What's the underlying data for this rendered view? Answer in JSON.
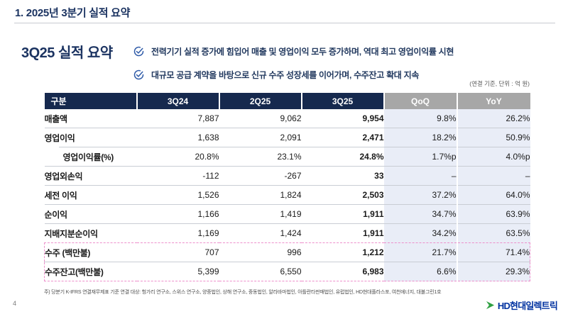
{
  "slide": {
    "title": "1. 2025년 3분기 실적 요약",
    "page_number": "4"
  },
  "summary": {
    "heading": "3Q25 실적 요약",
    "bullets": [
      {
        "icon": "circle-check-icon",
        "text": "전력기기 실적 증가에 힘입어 매출 및 영업이익 모두 증가하며, 역대 최고 영업이익률 시현"
      },
      {
        "icon": "circle-check-icon",
        "text": "대규모 공급 계약을 바탕으로 신규 수주 성장세를 이어가며, 수주잔고 확대 지속"
      }
    ]
  },
  "table": {
    "unit_note": "(연결 기준, 단위 : 억 원)",
    "columns": [
      "구분",
      "3Q24",
      "2Q25",
      "3Q25",
      "QoQ",
      "YoY"
    ],
    "rows": [
      {
        "label": "매출액",
        "q3_24": "7,887",
        "q2_25": "9,062",
        "q3_25": "9,954",
        "qoq": "9.8%",
        "yoy": "26.2%"
      },
      {
        "label": "영업이익",
        "q3_24": "1,638",
        "q2_25": "2,091",
        "q3_25": "2,471",
        "qoq": "18.2%",
        "yoy": "50.9%"
      },
      {
        "label": "영업이익률(%)",
        "q3_24": "20.8%",
        "q2_25": "23.1%",
        "q3_25": "24.8%",
        "qoq": "1.7%p",
        "yoy": "4.0%p",
        "indent": true
      },
      {
        "label": "영업외손익",
        "q3_24": "-112",
        "q2_25": "-267",
        "q3_25": "33",
        "qoq": "–",
        "yoy": "–"
      },
      {
        "label": "세전 이익",
        "q3_24": "1,526",
        "q2_25": "1,824",
        "q3_25": "2,503",
        "qoq": "37.2%",
        "yoy": "64.0%"
      },
      {
        "label": "순이익",
        "q3_24": "1,166",
        "q2_25": "1,419",
        "q3_25": "1,911",
        "qoq": "34.7%",
        "yoy": "63.9%"
      },
      {
        "label": "지배지분순이익",
        "q3_24": "1,169",
        "q2_25": "1,424",
        "q3_25": "1,911",
        "qoq": "34.2%",
        "yoy": "63.5%"
      },
      {
        "label": "수주 (백만불)",
        "q3_24": "707",
        "q2_25": "996",
        "q3_25": "1,212",
        "qoq": "21.7%",
        "yoy": "71.4%",
        "boxed": true
      },
      {
        "label": "수주잔고(백만불)",
        "q3_24": "5,399",
        "q2_25": "6,550",
        "q3_25": "6,983",
        "qoq": "6.6%",
        "yoy": "29.3%",
        "boxed": true
      }
    ]
  },
  "footnote": "주) 당분기 K-IFRS 연결재무제표 기준 연결 대상: 헝가리 연구소, 스위스 연구소, 양중법인, 상해 연구소, 중동법인, 알라바마법인, 아틀란타판매법인, 유럽법인, HD현대플라스포, 여천에너지, 대불그린1호",
  "logo": {
    "company": "HD현대일렉트릭"
  },
  "colors": {
    "navy": "#16294E",
    "title_navy": "#1B3361",
    "header_gray": "#A7A7A7",
    "delta_bg": "#E9EDF7",
    "dashed_pink": "#ED8FCB",
    "check_blue": "#2F5BA8",
    "logo_blue": "#0032A0",
    "logo_green": "#2FA042"
  }
}
